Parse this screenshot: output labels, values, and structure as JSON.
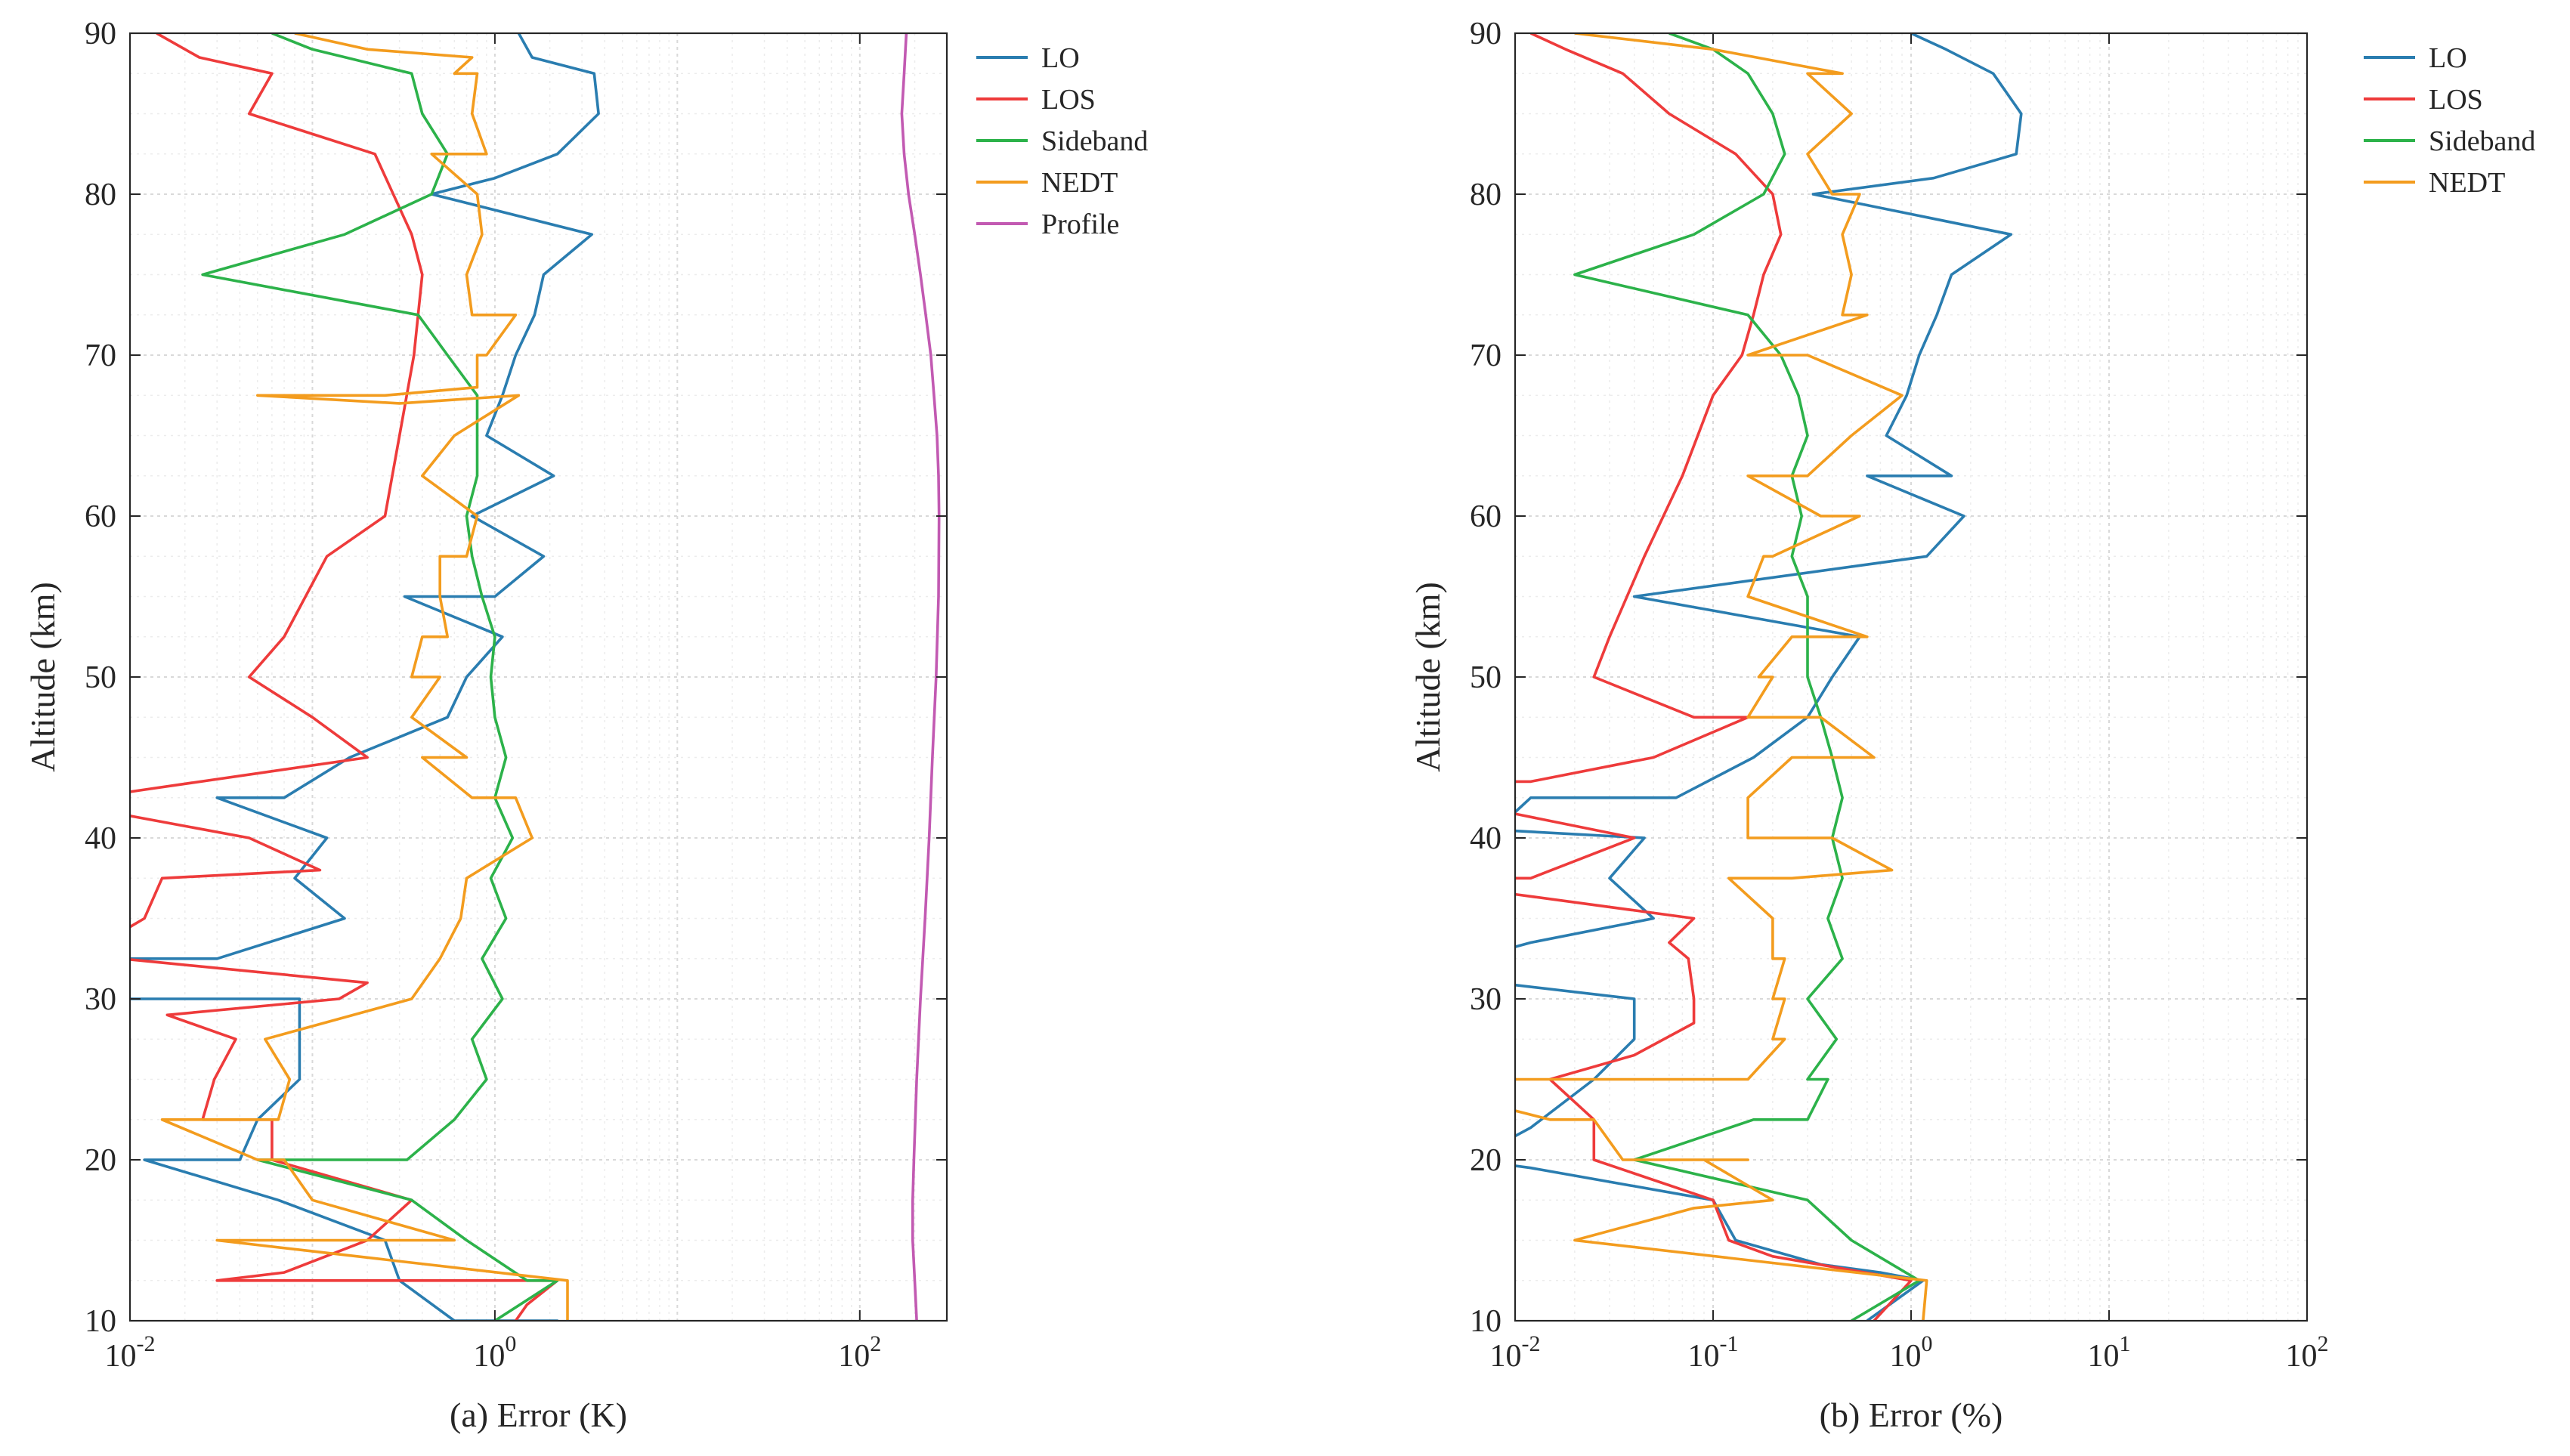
{
  "chart_data": [
    {
      "type": "line",
      "id": "a",
      "xlabel": "(a) Error (K)",
      "ylabel": "Altitude (km)",
      "xscale": "log",
      "xlim": [
        0.01,
        300
      ],
      "ylim": [
        10,
        90
      ],
      "x_ticks": [
        {
          "value": 0.01,
          "base": "10",
          "exp": "-2"
        },
        {
          "value": 1,
          "base": "10",
          "exp": "0"
        },
        {
          "value": 100,
          "base": "10",
          "exp": "2"
        }
      ],
      "y_ticks": [
        "10",
        "20",
        "30",
        "40",
        "50",
        "60",
        "70",
        "80",
        "90"
      ],
      "grid": true,
      "legend_position": "outside-right-top",
      "series": [
        {
          "name": "LO",
          "color": "#2a7db0",
          "x": [
            1.35,
            1.6,
            3.5,
            3.7,
            2.2,
            1.0,
            0.45,
            3.4,
            1.85,
            1.65,
            1.3,
            1.1,
            0.9,
            2.1,
            0.75,
            1.85,
            1.0,
            0.32,
            1.1,
            0.7,
            0.55,
            0.16,
            0.07,
            0.03,
            0.12,
            0.08,
            0.15,
            0.03,
            0.008,
            0.006,
            0.085,
            0.085,
            0.085,
            0.05,
            0.04,
            0.012,
            0.065,
            0.25,
            0.3,
            0.6,
            2.2,
            1.3
          ],
          "y": [
            90,
            88.5,
            87.5,
            85,
            82.5,
            81,
            80,
            77.5,
            75,
            72.5,
            70,
            67.5,
            65,
            62.5,
            60,
            57.5,
            55,
            55,
            52.5,
            50,
            47.5,
            45,
            42.5,
            42.5,
            40,
            37.5,
            35,
            32.5,
            32.5,
            30,
            30,
            27.5,
            25,
            22.5,
            20,
            20,
            17.5,
            15,
            12.5,
            10,
            10,
            10
          ]
        },
        {
          "name": "LOS",
          "color": "#ee3b3b",
          "x": [
            0.014,
            0.024,
            0.06,
            0.045,
            0.22,
            0.35,
            0.4,
            0.36,
            0.3,
            0.25,
            0.12,
            0.07,
            0.045,
            0.1,
            0.2,
            0.012,
            0.006,
            0.005,
            0.045,
            0.11,
            0.015,
            0.012,
            0.0085,
            0.009,
            0.2,
            0.14,
            0.016,
            0.038,
            0.029,
            0.025,
            0.06,
            0.06,
            0.35,
            0.2,
            0.07,
            0.03,
            0.19,
            0.23,
            0.25,
            0.35,
            2.2,
            1.5,
            1.3
          ],
          "y": [
            90,
            88.5,
            87.5,
            85,
            82.5,
            77.5,
            75,
            70,
            65,
            60,
            57.5,
            52.5,
            50,
            47.5,
            45,
            43,
            42.5,
            42,
            40,
            38,
            37.5,
            35,
            34,
            32.5,
            31,
            30,
            29,
            27.5,
            25,
            22.5,
            22.5,
            20,
            17.5,
            15,
            13,
            12.5,
            12.5,
            12.5,
            12.5,
            12.5,
            12.5,
            11,
            10
          ]
        },
        {
          "name": "Sideband",
          "color": "#2cb24a",
          "x": [
            0.06,
            0.1,
            0.35,
            0.4,
            0.55,
            0.45,
            0.15,
            0.025,
            0.38,
            0.55,
            0.8,
            0.8,
            0.8,
            0.7,
            0.75,
            0.85,
            1.0,
            0.95,
            1.0,
            1.15,
            1.0,
            1.25,
            0.95,
            1.15,
            0.85,
            1.1,
            0.75,
            0.9,
            0.6,
            0.33,
            0.1,
            0.05,
            0.35,
            0.7,
            1.5,
            2.2,
            1.0
          ],
          "y": [
            90,
            89,
            87.5,
            85,
            82.5,
            80,
            77.5,
            75,
            72.5,
            70,
            67.5,
            65,
            62.5,
            60,
            57.5,
            55,
            52.5,
            50,
            47.5,
            45,
            42.5,
            40,
            37.5,
            35,
            32.5,
            30,
            27.5,
            25,
            22.5,
            20,
            20,
            20,
            17.5,
            15,
            12.5,
            12.5,
            10
          ]
        },
        {
          "name": "NEDT",
          "color": "#f39c1e",
          "x": [
            0.08,
            0.2,
            0.75,
            0.6,
            0.8,
            0.75,
            0.9,
            0.45,
            0.8,
            0.85,
            0.7,
            0.75,
            1.3,
            0.9,
            0.8,
            0.8,
            0.25,
            0.05,
            0.3,
            1.35,
            0.6,
            0.4,
            0.8,
            0.7,
            0.5,
            0.5,
            0.55,
            0.4,
            0.35,
            0.5,
            0.35,
            0.7,
            0.4,
            0.75,
            1.3,
            1.6,
            0.7,
            0.65,
            0.5,
            0.35,
            0.055,
            0.055,
            0.075,
            0.065,
            0.015,
            0.05,
            0.07,
            0.1,
            0.6,
            0.03,
            2.5,
            2.5
          ],
          "y": [
            90,
            89,
            88.5,
            87.5,
            87.5,
            85,
            82.5,
            82.5,
            80,
            77.5,
            75,
            72.5,
            72.5,
            70,
            70,
            68,
            67.5,
            67.5,
            67,
            67.5,
            65,
            62.5,
            60,
            57.5,
            57.5,
            55,
            52.5,
            52.5,
            50,
            50,
            47.5,
            45,
            45,
            42.5,
            42.5,
            40,
            37.5,
            35,
            32.5,
            30,
            27.5,
            27.5,
            25,
            22.5,
            22.5,
            20,
            20,
            17.5,
            15,
            15,
            12.5,
            10
          ]
        },
        {
          "name": "Profile",
          "color": "#c25ab2",
          "x": [
            180,
            175,
            170,
            175,
            185,
            200,
            215,
            230,
            245,
            255,
            265,
            270,
            272,
            270,
            262,
            250,
            240,
            228,
            215,
            205,
            198,
            195,
            195,
            200,
            205
          ],
          "y": [
            90,
            87.5,
            85,
            82.5,
            80,
            77.5,
            75,
            72.5,
            70,
            67.5,
            65,
            62.5,
            60,
            55,
            50,
            45,
            40,
            35,
            30,
            25,
            20,
            17.5,
            15,
            12.5,
            10
          ]
        }
      ]
    },
    {
      "type": "line",
      "id": "b",
      "xlabel": "(b) Error (%)",
      "ylabel": "Altitude (km)",
      "xscale": "log",
      "xlim": [
        0.01,
        100
      ],
      "ylim": [
        10,
        90
      ],
      "x_ticks": [
        {
          "value": 0.01,
          "base": "10",
          "exp": "-2"
        },
        {
          "value": 0.1,
          "base": "10",
          "exp": "-1"
        },
        {
          "value": 1,
          "base": "10",
          "exp": "0"
        },
        {
          "value": 10,
          "base": "10",
          "exp": "1"
        },
        {
          "value": 100,
          "base": "10",
          "exp": "2"
        }
      ],
      "y_ticks": [
        "10",
        "20",
        "30",
        "40",
        "50",
        "60",
        "70",
        "80",
        "90"
      ],
      "grid": true,
      "legend_position": "outside-right-top",
      "series": [
        {
          "name": "LO",
          "color": "#2a7db0",
          "x": [
            1.0,
            1.5,
            2.6,
            3.6,
            3.4,
            1.3,
            0.32,
            3.2,
            1.6,
            1.35,
            1.1,
            0.95,
            0.75,
            1.6,
            0.6,
            1.85,
            1.2,
            0.04,
            0.55,
            0.4,
            0.3,
            0.16,
            0.065,
            0.012,
            0.008,
            0.045,
            0.03,
            0.05,
            0.012,
            0.006,
            0.008,
            0.04,
            0.04,
            0.025,
            0.012,
            0.006,
            0.012,
            0.1,
            0.13,
            0.35,
            0.7,
            1.15,
            0.6
          ],
          "y": [
            90,
            89,
            87.5,
            85,
            82.5,
            81,
            80,
            77.5,
            75,
            72.5,
            70,
            67.5,
            65,
            62.5,
            62.5,
            60,
            57.5,
            55,
            52.5,
            50,
            47.5,
            45,
            42.5,
            42.5,
            40.5,
            40,
            37.5,
            35,
            33.5,
            32.5,
            31,
            30,
            27.5,
            25,
            22,
            20,
            19.5,
            17.5,
            15,
            13.5,
            13,
            12.5,
            10
          ]
        },
        {
          "name": "LOS",
          "color": "#ee3b3b",
          "x": [
            0.012,
            0.018,
            0.035,
            0.06,
            0.13,
            0.2,
            0.22,
            0.18,
            0.16,
            0.14,
            0.1,
            0.07,
            0.045,
            0.03,
            0.025,
            0.08,
            0.15,
            0.05,
            0.012,
            0.008,
            0.01,
            0.04,
            0.012,
            0.006,
            0.01,
            0.08,
            0.06,
            0.075,
            0.08,
            0.08,
            0.04,
            0.015,
            0.025,
            0.025,
            0.1,
            0.12,
            0.2,
            1.0,
            0.65
          ],
          "y": [
            90,
            89,
            87.5,
            85,
            82.5,
            80,
            77.5,
            75,
            72.5,
            70,
            67.5,
            62.5,
            57.5,
            52.5,
            50,
            47.5,
            47.5,
            45,
            43.5,
            43.5,
            41.5,
            40,
            37.5,
            37.5,
            36.5,
            35,
            33.5,
            32.5,
            30,
            28.5,
            26.5,
            25,
            22.5,
            20,
            17.5,
            15,
            14,
            12.5,
            10
          ]
        },
        {
          "name": "Sideband",
          "color": "#2cb24a",
          "x": [
            0.06,
            0.1,
            0.15,
            0.2,
            0.23,
            0.18,
            0.08,
            0.02,
            0.15,
            0.22,
            0.27,
            0.3,
            0.25,
            0.28,
            0.25,
            0.3,
            0.3,
            0.3,
            0.35,
            0.4,
            0.45,
            0.4,
            0.45,
            0.38,
            0.45,
            0.3,
            0.42,
            0.3,
            0.38,
            0.3,
            0.2,
            0.16,
            0.04,
            0.3,
            0.5,
            1.1,
            0.5
          ],
          "y": [
            90,
            89,
            87.5,
            85,
            82.5,
            80,
            77.5,
            75,
            72.5,
            70,
            67.5,
            65,
            62.5,
            60,
            57.5,
            55,
            52.5,
            50,
            47.5,
            45,
            42.5,
            40,
            37.5,
            35,
            32.5,
            30,
            27.5,
            25,
            25,
            22.5,
            22.5,
            22.5,
            20,
            17.5,
            15,
            12.5,
            10
          ]
        },
        {
          "name": "NEDT",
          "color": "#f39c1e",
          "x": [
            0.02,
            0.1,
            0.45,
            0.3,
            0.5,
            0.3,
            0.4,
            0.55,
            0.45,
            0.5,
            0.45,
            0.6,
            0.15,
            0.3,
            0.9,
            0.5,
            0.3,
            0.15,
            0.35,
            0.55,
            0.2,
            0.18,
            0.15,
            0.6,
            0.25,
            0.17,
            0.2,
            0.15,
            0.35,
            0.65,
            0.25,
            0.15,
            0.15,
            0.4,
            0.8,
            0.25,
            0.12,
            0.2,
            0.2,
            0.23,
            0.2,
            0.23,
            0.2,
            0.23,
            0.15,
            0.01,
            0.005,
            0.015,
            0.025,
            0.035,
            0.15,
            0.09,
            0.2,
            0.08,
            0.02,
            1.2,
            1.15
          ],
          "y": [
            90,
            89,
            87.5,
            87.5,
            85,
            82.5,
            80,
            80,
            77.5,
            75,
            72.5,
            72.5,
            70,
            70,
            67.5,
            65,
            62.5,
            62.5,
            60,
            60,
            57.5,
            57.5,
            55,
            52.5,
            52.5,
            50,
            50,
            47.5,
            47.5,
            45,
            45,
            42.5,
            40,
            40,
            38,
            37.5,
            37.5,
            35,
            32.5,
            32.5,
            30,
            30,
            27.5,
            27.5,
            25,
            25,
            24,
            22.5,
            22.5,
            20,
            20,
            20,
            17.5,
            17,
            15,
            12.5,
            10
          ]
        }
      ]
    }
  ]
}
